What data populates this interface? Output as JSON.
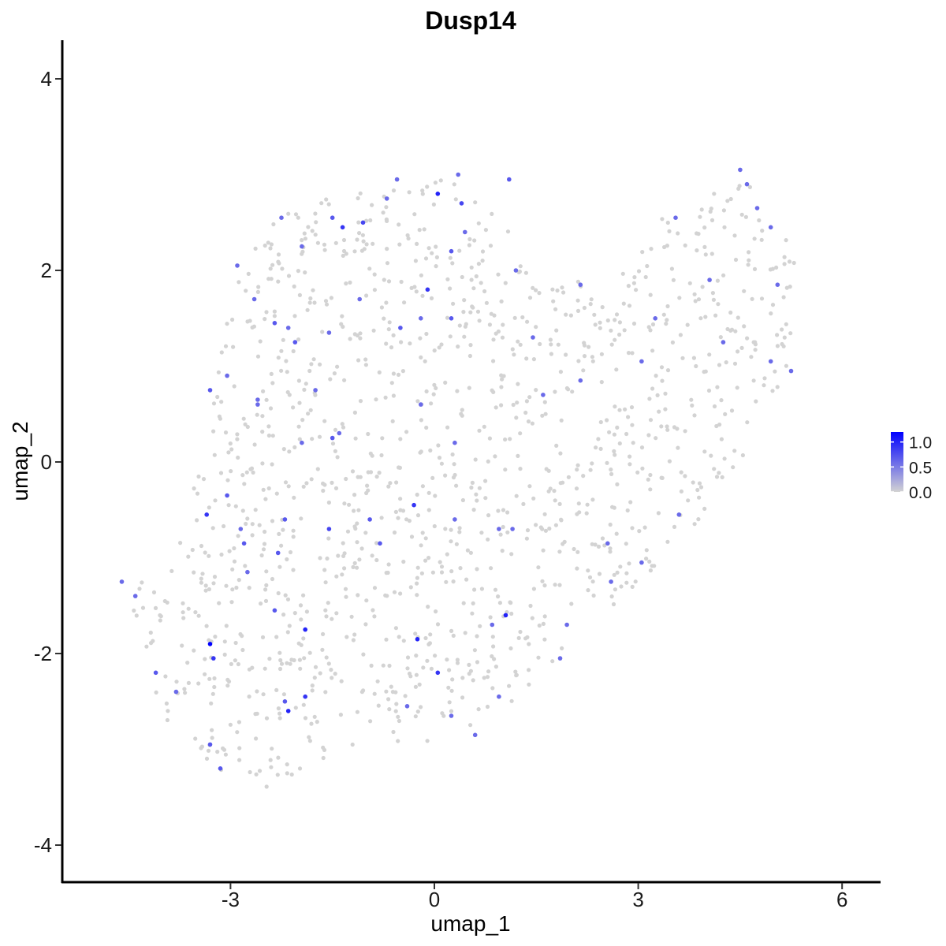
{
  "chart_data": {
    "type": "scatter",
    "title": "Dusp14",
    "xlabel": "umap_1",
    "ylabel": "umap_2",
    "xlim": [
      -5.4,
      6.5
    ],
    "ylim": [
      -4.35,
      4.4
    ],
    "xticks": [
      -3,
      0,
      3,
      6
    ],
    "xtick_labels": [
      "-3",
      "0",
      "3",
      "6"
    ],
    "yticks": [
      -4,
      -2,
      0,
      2,
      4
    ],
    "ytick_labels": [
      "-4",
      "-2",
      "0",
      "2",
      "4"
    ],
    "grid": false,
    "legend": {
      "position": "right",
      "type": "colorbar",
      "labels": [
        "1.0",
        "0.5",
        "0.0"
      ],
      "label_values": [
        1.0,
        0.5,
        0.0
      ],
      "range": [
        0,
        1.2
      ],
      "low_color": "#d3d3d3",
      "high_color": "#0000ff"
    },
    "background_color": "#d3d3d3",
    "n_background_points": 1300,
    "background_region": [
      [
        -4.6,
        -1.2
      ],
      [
        -4.4,
        -1.6
      ],
      [
        -4.2,
        -2.1
      ],
      [
        -4.0,
        -2.7
      ],
      [
        -3.5,
        -3.0
      ],
      [
        -3.2,
        -3.2
      ],
      [
        -2.8,
        -3.3
      ],
      [
        -2.3,
        -3.5
      ],
      [
        -1.8,
        -3.2
      ],
      [
        -1.4,
        -3.1
      ],
      [
        -0.9,
        -2.9
      ],
      [
        0.0,
        -3.0
      ],
      [
        0.6,
        -2.9
      ],
      [
        1.0,
        -2.6
      ],
      [
        1.6,
        -2.2
      ],
      [
        2.2,
        -1.8
      ],
      [
        2.8,
        -1.4
      ],
      [
        3.4,
        -1.0
      ],
      [
        4.0,
        -0.6
      ],
      [
        4.5,
        -0.1
      ],
      [
        4.9,
        0.4
      ],
      [
        5.2,
        0.9
      ],
      [
        5.3,
        1.5
      ],
      [
        5.3,
        2.4
      ],
      [
        4.9,
        2.7
      ],
      [
        4.5,
        3.0
      ],
      [
        4.0,
        2.8
      ],
      [
        3.4,
        2.6
      ],
      [
        2.8,
        2.2
      ],
      [
        2.2,
        1.9
      ],
      [
        1.6,
        1.8
      ],
      [
        1.2,
        2.2
      ],
      [
        1.0,
        2.6
      ],
      [
        0.5,
        2.9
      ],
      [
        -0.2,
        3.0
      ],
      [
        -0.9,
        3.0
      ],
      [
        -1.6,
        2.8
      ],
      [
        -2.2,
        2.6
      ],
      [
        -2.8,
        2.2
      ],
      [
        -3.0,
        1.6
      ],
      [
        -3.2,
        1.0
      ],
      [
        -3.4,
        0.2
      ],
      [
        -3.6,
        -0.4
      ],
      [
        -3.8,
        -0.9
      ],
      [
        -4.1,
        -1.2
      ]
    ],
    "series": [
      {
        "color_scale": "expression",
        "points": [
          {
            "x": -4.6,
            "y": -1.25,
            "v": 0.6
          },
          {
            "x": -4.4,
            "y": -1.4,
            "v": 0.6
          },
          {
            "x": -4.1,
            "y": -2.2,
            "v": 0.7
          },
          {
            "x": -3.8,
            "y": -2.4,
            "v": 0.6
          },
          {
            "x": -3.3,
            "y": -1.9,
            "v": 1.2
          },
          {
            "x": -3.25,
            "y": -2.05,
            "v": 0.9
          },
          {
            "x": -3.3,
            "y": -2.95,
            "v": 0.7
          },
          {
            "x": -3.15,
            "y": -3.2,
            "v": 0.7
          },
          {
            "x": -3.35,
            "y": -0.55,
            "v": 0.9
          },
          {
            "x": -3.05,
            "y": -0.35,
            "v": 0.7
          },
          {
            "x": -2.8,
            "y": -0.85,
            "v": 0.7
          },
          {
            "x": -2.85,
            "y": -0.7,
            "v": 0.6
          },
          {
            "x": -3.3,
            "y": 0.75,
            "v": 0.7
          },
          {
            "x": -3.05,
            "y": 0.9,
            "v": 0.6
          },
          {
            "x": -2.6,
            "y": 0.65,
            "v": 0.6
          },
          {
            "x": -2.9,
            "y": 2.05,
            "v": 0.6
          },
          {
            "x": -2.65,
            "y": 1.7,
            "v": 0.6
          },
          {
            "x": -2.35,
            "y": 1.45,
            "v": 0.7
          },
          {
            "x": -2.15,
            "y": 1.4,
            "v": 0.6
          },
          {
            "x": -2.05,
            "y": 1.25,
            "v": 0.7
          },
          {
            "x": -2.25,
            "y": 2.55,
            "v": 0.6
          },
          {
            "x": -1.95,
            "y": 2.25,
            "v": 0.6
          },
          {
            "x": -1.5,
            "y": 2.55,
            "v": 0.7
          },
          {
            "x": -1.35,
            "y": 2.45,
            "v": 0.9
          },
          {
            "x": -1.05,
            "y": 2.5,
            "v": 0.8
          },
          {
            "x": -0.7,
            "y": 2.75,
            "v": 0.6
          },
          {
            "x": -0.55,
            "y": 2.95,
            "v": 0.6
          },
          {
            "x": 0.05,
            "y": 2.8,
            "v": 1.0
          },
          {
            "x": 0.4,
            "y": 2.7,
            "v": 0.8
          },
          {
            "x": 0.35,
            "y": 3.0,
            "v": 0.6
          },
          {
            "x": 1.1,
            "y": 2.95,
            "v": 0.7
          },
          {
            "x": 0.45,
            "y": 2.4,
            "v": 0.6
          },
          {
            "x": 0.25,
            "y": 2.2,
            "v": 0.7
          },
          {
            "x": 1.2,
            "y": 2.0,
            "v": 0.6
          },
          {
            "x": -0.1,
            "y": 1.8,
            "v": 0.9
          },
          {
            "x": -0.5,
            "y": 1.4,
            "v": 0.7
          },
          {
            "x": -0.2,
            "y": 1.5,
            "v": 0.6
          },
          {
            "x": 0.25,
            "y": 1.5,
            "v": 0.7
          },
          {
            "x": -1.1,
            "y": 1.7,
            "v": 0.6
          },
          {
            "x": -1.55,
            "y": 1.35,
            "v": 0.6
          },
          {
            "x": -1.4,
            "y": 0.3,
            "v": 0.6
          },
          {
            "x": -1.5,
            "y": 0.25,
            "v": 0.7
          },
          {
            "x": -1.95,
            "y": 0.2,
            "v": 0.6
          },
          {
            "x": -0.2,
            "y": 0.6,
            "v": 0.6
          },
          {
            "x": 0.3,
            "y": 0.2,
            "v": 0.6
          },
          {
            "x": -0.3,
            "y": -0.45,
            "v": 0.9
          },
          {
            "x": -0.95,
            "y": -0.6,
            "v": 0.7
          },
          {
            "x": -1.55,
            "y": -0.7,
            "v": 0.8
          },
          {
            "x": -0.8,
            "y": -0.85,
            "v": 0.7
          },
          {
            "x": 0.3,
            "y": -0.6,
            "v": 0.6
          },
          {
            "x": 1.15,
            "y": -0.7,
            "v": 0.6
          },
          {
            "x": 0.95,
            "y": -0.7,
            "v": 0.6
          },
          {
            "x": 1.05,
            "y": -1.6,
            "v": 1.0
          },
          {
            "x": 0.85,
            "y": -1.7,
            "v": 0.6
          },
          {
            "x": -0.25,
            "y": -1.85,
            "v": 1.0
          },
          {
            "x": 0.05,
            "y": -2.2,
            "v": 0.9
          },
          {
            "x": 0.25,
            "y": -2.65,
            "v": 0.6
          },
          {
            "x": 0.6,
            "y": -2.85,
            "v": 0.6
          },
          {
            "x": -0.4,
            "y": -2.55,
            "v": 0.6
          },
          {
            "x": 0.95,
            "y": -2.45,
            "v": 0.6
          },
          {
            "x": -2.15,
            "y": -2.6,
            "v": 1.0
          },
          {
            "x": -2.2,
            "y": -2.5,
            "v": 0.7
          },
          {
            "x": -1.9,
            "y": -2.45,
            "v": 0.9
          },
          {
            "x": -2.35,
            "y": -1.55,
            "v": 0.7
          },
          {
            "x": -1.9,
            "y": -1.75,
            "v": 1.0
          },
          {
            "x": -2.3,
            "y": -0.95,
            "v": 0.7
          },
          {
            "x": -2.2,
            "y": -0.6,
            "v": 0.7
          },
          {
            "x": -2.75,
            "y": -1.15,
            "v": 0.6
          },
          {
            "x": -2.6,
            "y": 0.6,
            "v": 0.6
          },
          {
            "x": -1.75,
            "y": 0.75,
            "v": 0.6
          },
          {
            "x": 1.95,
            "y": -1.7,
            "v": 0.6
          },
          {
            "x": 1.85,
            "y": -2.05,
            "v": 0.6
          },
          {
            "x": 2.6,
            "y": -1.25,
            "v": 0.6
          },
          {
            "x": 3.05,
            "y": -1.05,
            "v": 0.6
          },
          {
            "x": 2.55,
            "y": -0.85,
            "v": 0.6
          },
          {
            "x": 3.6,
            "y": -0.55,
            "v": 0.6
          },
          {
            "x": 3.05,
            "y": 1.05,
            "v": 0.6
          },
          {
            "x": 2.15,
            "y": 0.85,
            "v": 0.6
          },
          {
            "x": 1.6,
            "y": 0.7,
            "v": 0.6
          },
          {
            "x": 1.45,
            "y": 1.3,
            "v": 0.6
          },
          {
            "x": 2.15,
            "y": 1.85,
            "v": 0.6
          },
          {
            "x": 3.55,
            "y": 2.55,
            "v": 0.6
          },
          {
            "x": 4.05,
            "y": 1.9,
            "v": 0.6
          },
          {
            "x": 4.25,
            "y": 1.25,
            "v": 0.6
          },
          {
            "x": 4.6,
            "y": 2.9,
            "v": 0.6
          },
          {
            "x": 4.75,
            "y": 2.65,
            "v": 0.6
          },
          {
            "x": 4.95,
            "y": 2.45,
            "v": 0.6
          },
          {
            "x": 5.05,
            "y": 1.85,
            "v": 0.6
          },
          {
            "x": 5.25,
            "y": 0.95,
            "v": 0.6
          },
          {
            "x": 4.95,
            "y": 1.05,
            "v": 0.6
          },
          {
            "x": 4.5,
            "y": 3.05,
            "v": 0.6
          },
          {
            "x": 3.25,
            "y": 1.5,
            "v": 0.6
          }
        ]
      }
    ]
  }
}
